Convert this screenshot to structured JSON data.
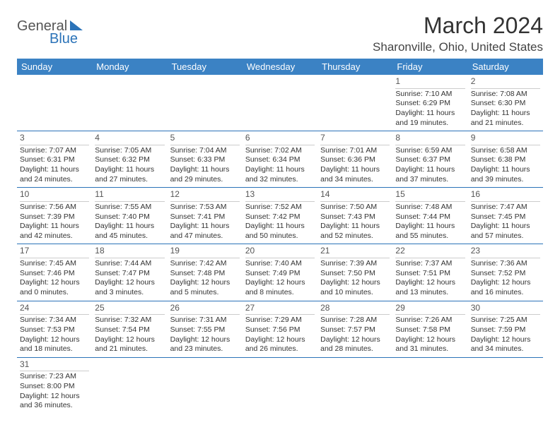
{
  "logo": {
    "part1": "General",
    "part2": "Blue"
  },
  "title": "March 2024",
  "location": "Sharonville, Ohio, United States",
  "weekdays": [
    "Sunday",
    "Monday",
    "Tuesday",
    "Wednesday",
    "Thursday",
    "Friday",
    "Saturday"
  ],
  "colors": {
    "header_bg": "#3b82c4",
    "divider": "#2b73b8",
    "text": "#333333"
  },
  "weeks": [
    [
      null,
      null,
      null,
      null,
      null,
      {
        "n": "1",
        "sr": "Sunrise: 7:10 AM",
        "ss": "Sunset: 6:29 PM",
        "d1": "Daylight: 11 hours",
        "d2": "and 19 minutes."
      },
      {
        "n": "2",
        "sr": "Sunrise: 7:08 AM",
        "ss": "Sunset: 6:30 PM",
        "d1": "Daylight: 11 hours",
        "d2": "and 21 minutes."
      }
    ],
    [
      {
        "n": "3",
        "sr": "Sunrise: 7:07 AM",
        "ss": "Sunset: 6:31 PM",
        "d1": "Daylight: 11 hours",
        "d2": "and 24 minutes."
      },
      {
        "n": "4",
        "sr": "Sunrise: 7:05 AM",
        "ss": "Sunset: 6:32 PM",
        "d1": "Daylight: 11 hours",
        "d2": "and 27 minutes."
      },
      {
        "n": "5",
        "sr": "Sunrise: 7:04 AM",
        "ss": "Sunset: 6:33 PM",
        "d1": "Daylight: 11 hours",
        "d2": "and 29 minutes."
      },
      {
        "n": "6",
        "sr": "Sunrise: 7:02 AM",
        "ss": "Sunset: 6:34 PM",
        "d1": "Daylight: 11 hours",
        "d2": "and 32 minutes."
      },
      {
        "n": "7",
        "sr": "Sunrise: 7:01 AM",
        "ss": "Sunset: 6:36 PM",
        "d1": "Daylight: 11 hours",
        "d2": "and 34 minutes."
      },
      {
        "n": "8",
        "sr": "Sunrise: 6:59 AM",
        "ss": "Sunset: 6:37 PM",
        "d1": "Daylight: 11 hours",
        "d2": "and 37 minutes."
      },
      {
        "n": "9",
        "sr": "Sunrise: 6:58 AM",
        "ss": "Sunset: 6:38 PM",
        "d1": "Daylight: 11 hours",
        "d2": "and 39 minutes."
      }
    ],
    [
      {
        "n": "10",
        "sr": "Sunrise: 7:56 AM",
        "ss": "Sunset: 7:39 PM",
        "d1": "Daylight: 11 hours",
        "d2": "and 42 minutes."
      },
      {
        "n": "11",
        "sr": "Sunrise: 7:55 AM",
        "ss": "Sunset: 7:40 PM",
        "d1": "Daylight: 11 hours",
        "d2": "and 45 minutes."
      },
      {
        "n": "12",
        "sr": "Sunrise: 7:53 AM",
        "ss": "Sunset: 7:41 PM",
        "d1": "Daylight: 11 hours",
        "d2": "and 47 minutes."
      },
      {
        "n": "13",
        "sr": "Sunrise: 7:52 AM",
        "ss": "Sunset: 7:42 PM",
        "d1": "Daylight: 11 hours",
        "d2": "and 50 minutes."
      },
      {
        "n": "14",
        "sr": "Sunrise: 7:50 AM",
        "ss": "Sunset: 7:43 PM",
        "d1": "Daylight: 11 hours",
        "d2": "and 52 minutes."
      },
      {
        "n": "15",
        "sr": "Sunrise: 7:48 AM",
        "ss": "Sunset: 7:44 PM",
        "d1": "Daylight: 11 hours",
        "d2": "and 55 minutes."
      },
      {
        "n": "16",
        "sr": "Sunrise: 7:47 AM",
        "ss": "Sunset: 7:45 PM",
        "d1": "Daylight: 11 hours",
        "d2": "and 57 minutes."
      }
    ],
    [
      {
        "n": "17",
        "sr": "Sunrise: 7:45 AM",
        "ss": "Sunset: 7:46 PM",
        "d1": "Daylight: 12 hours",
        "d2": "and 0 minutes."
      },
      {
        "n": "18",
        "sr": "Sunrise: 7:44 AM",
        "ss": "Sunset: 7:47 PM",
        "d1": "Daylight: 12 hours",
        "d2": "and 3 minutes."
      },
      {
        "n": "19",
        "sr": "Sunrise: 7:42 AM",
        "ss": "Sunset: 7:48 PM",
        "d1": "Daylight: 12 hours",
        "d2": "and 5 minutes."
      },
      {
        "n": "20",
        "sr": "Sunrise: 7:40 AM",
        "ss": "Sunset: 7:49 PM",
        "d1": "Daylight: 12 hours",
        "d2": "and 8 minutes."
      },
      {
        "n": "21",
        "sr": "Sunrise: 7:39 AM",
        "ss": "Sunset: 7:50 PM",
        "d1": "Daylight: 12 hours",
        "d2": "and 10 minutes."
      },
      {
        "n": "22",
        "sr": "Sunrise: 7:37 AM",
        "ss": "Sunset: 7:51 PM",
        "d1": "Daylight: 12 hours",
        "d2": "and 13 minutes."
      },
      {
        "n": "23",
        "sr": "Sunrise: 7:36 AM",
        "ss": "Sunset: 7:52 PM",
        "d1": "Daylight: 12 hours",
        "d2": "and 16 minutes."
      }
    ],
    [
      {
        "n": "24",
        "sr": "Sunrise: 7:34 AM",
        "ss": "Sunset: 7:53 PM",
        "d1": "Daylight: 12 hours",
        "d2": "and 18 minutes."
      },
      {
        "n": "25",
        "sr": "Sunrise: 7:32 AM",
        "ss": "Sunset: 7:54 PM",
        "d1": "Daylight: 12 hours",
        "d2": "and 21 minutes."
      },
      {
        "n": "26",
        "sr": "Sunrise: 7:31 AM",
        "ss": "Sunset: 7:55 PM",
        "d1": "Daylight: 12 hours",
        "d2": "and 23 minutes."
      },
      {
        "n": "27",
        "sr": "Sunrise: 7:29 AM",
        "ss": "Sunset: 7:56 PM",
        "d1": "Daylight: 12 hours",
        "d2": "and 26 minutes."
      },
      {
        "n": "28",
        "sr": "Sunrise: 7:28 AM",
        "ss": "Sunset: 7:57 PM",
        "d1": "Daylight: 12 hours",
        "d2": "and 28 minutes."
      },
      {
        "n": "29",
        "sr": "Sunrise: 7:26 AM",
        "ss": "Sunset: 7:58 PM",
        "d1": "Daylight: 12 hours",
        "d2": "and 31 minutes."
      },
      {
        "n": "30",
        "sr": "Sunrise: 7:25 AM",
        "ss": "Sunset: 7:59 PM",
        "d1": "Daylight: 12 hours",
        "d2": "and 34 minutes."
      }
    ],
    [
      {
        "n": "31",
        "sr": "Sunrise: 7:23 AM",
        "ss": "Sunset: 8:00 PM",
        "d1": "Daylight: 12 hours",
        "d2": "and 36 minutes."
      },
      null,
      null,
      null,
      null,
      null,
      null
    ]
  ]
}
